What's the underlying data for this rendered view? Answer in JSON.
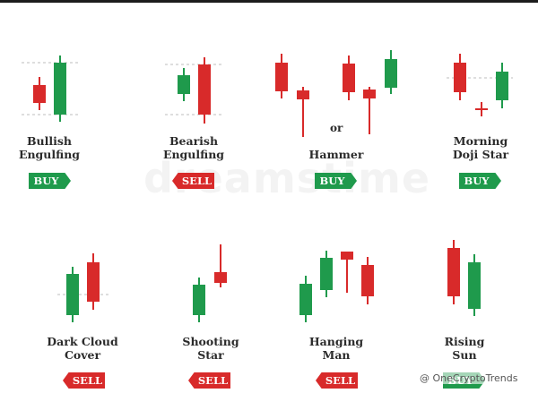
{
  "colors": {
    "bull": "#1f9a4c",
    "bear": "#d82a2a",
    "guide": "#bdbdbd",
    "text": "#2b2b2b"
  },
  "watermark": "dreamstime",
  "connector": "or",
  "credit": "@ OneCryptoTrends",
  "patterns": [
    {
      "name": "Bullish Engulfing",
      "line1": "Bullish",
      "line2": "Engulfing",
      "signal": "BUY"
    },
    {
      "name": "Bearish Engulfing",
      "line1": "Bearish",
      "line2": "Engulfing",
      "signal": "SELL"
    },
    {
      "name": "Hammer",
      "line1": "Hammer",
      "line2": "",
      "signal": "BUY"
    },
    {
      "name": "Morning Doji Star",
      "line1": "Morning",
      "line2": "Doji Star",
      "signal": "BUY"
    },
    {
      "name": "Dark Cloud Cover",
      "line1": "Dark Cloud",
      "line2": "Cover",
      "signal": "SELL"
    },
    {
      "name": "Shooting Star",
      "line1": "Shooting",
      "line2": "Star",
      "signal": "SELL"
    },
    {
      "name": "Hanging Man",
      "line1": "Hanging",
      "line2": "Man",
      "signal": "SELL"
    },
    {
      "name": "Rising Sun",
      "line1": "Rising",
      "line2": "Sun",
      "signal": "BUY"
    }
  ]
}
